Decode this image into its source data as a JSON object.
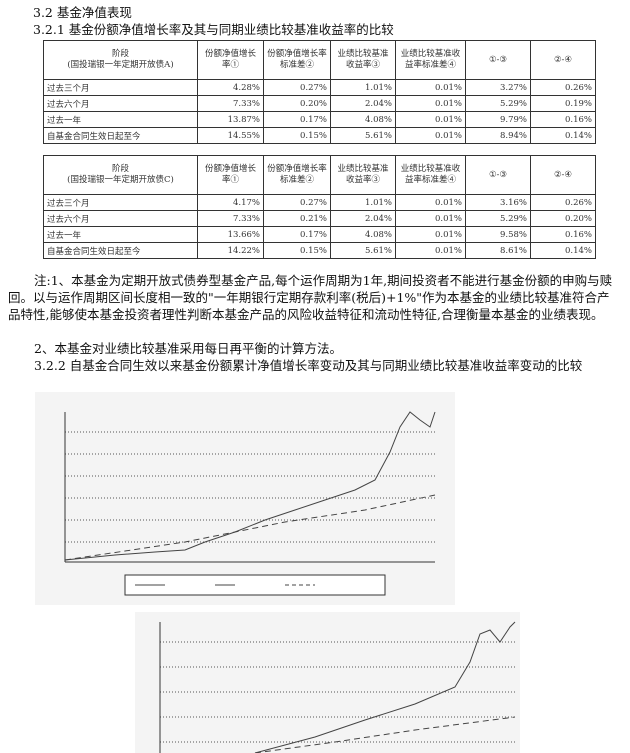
{
  "section_title": "3.2 基金净值表现",
  "subsection_title": "3.2.1 基金份额净值增长率及其与同期业绩比较基准收益率的比较",
  "tables": [
    {
      "headers": [
        "阶段\n(国投瑞银一年定期开放债A)",
        "份额净值增长率①",
        "份额净值增长率标准差②",
        "业绩比较基准收益率③",
        "业绩比较基准收益率标准差④",
        "①-③",
        "②-④"
      ],
      "rows": [
        [
          "过去三个月",
          "4.28%",
          "0.27%",
          "1.01%",
          "0.01%",
          "3.27%",
          "0.26%"
        ],
        [
          "过去六个月",
          "7.33%",
          "0.20%",
          "2.04%",
          "0.01%",
          "5.29%",
          "0.19%"
        ],
        [
          "过去一年",
          "13.87%",
          "0.17%",
          "4.08%",
          "0.01%",
          "9.79%",
          "0.16%"
        ],
        [
          "自基金合同生效日起至今",
          "14.55%",
          "0.15%",
          "5.61%",
          "0.01%",
          "8.94%",
          "0.14%"
        ]
      ]
    },
    {
      "headers": [
        "阶段\n(国投瑞银一年定期开放债C)",
        "份额净值增长率①",
        "份额净值增长率标准差②",
        "业绩比较基准收益率③",
        "业绩比较基准收益率标准差④",
        "①-③",
        "②-④"
      ],
      "rows": [
        [
          "过去三个月",
          "4.17%",
          "0.27%",
          "1.01%",
          "0.01%",
          "3.16%",
          "0.26%"
        ],
        [
          "过去六个月",
          "7.33%",
          "0.21%",
          "2.04%",
          "0.01%",
          "5.29%",
          "0.20%"
        ],
        [
          "过去一年",
          "13.66%",
          "0.17%",
          "4.08%",
          "0.01%",
          "9.58%",
          "0.16%"
        ],
        [
          "自基金合同生效日起至今",
          "14.22%",
          "0.15%",
          "5.61%",
          "0.01%",
          "8.61%",
          "0.14%"
        ]
      ]
    }
  ],
  "notes": [
    "注:1、本基金为定期开放式债券型基金产品,每个运作周期为1年,期间投资者不能进行基金份额的申购与赎回。以与运作周期区间长度相一致的\"一年期银行定期存款利率(税后)+1%\"作为本基金的业绩比较基准符合产品特性,能够使本基金投资者理性判断本基金产品的风险收益特征和流动性特征,合理衡量本基金的业绩表现。",
    "2、本基金对业绩比较基准采用每日再平衡的计算方法。"
  ],
  "figure_title": "3.2.2 自基金合同生效以来基金份额累计净值增长率变动及其与同期业绩比较基准收益率变动的比较"
}
